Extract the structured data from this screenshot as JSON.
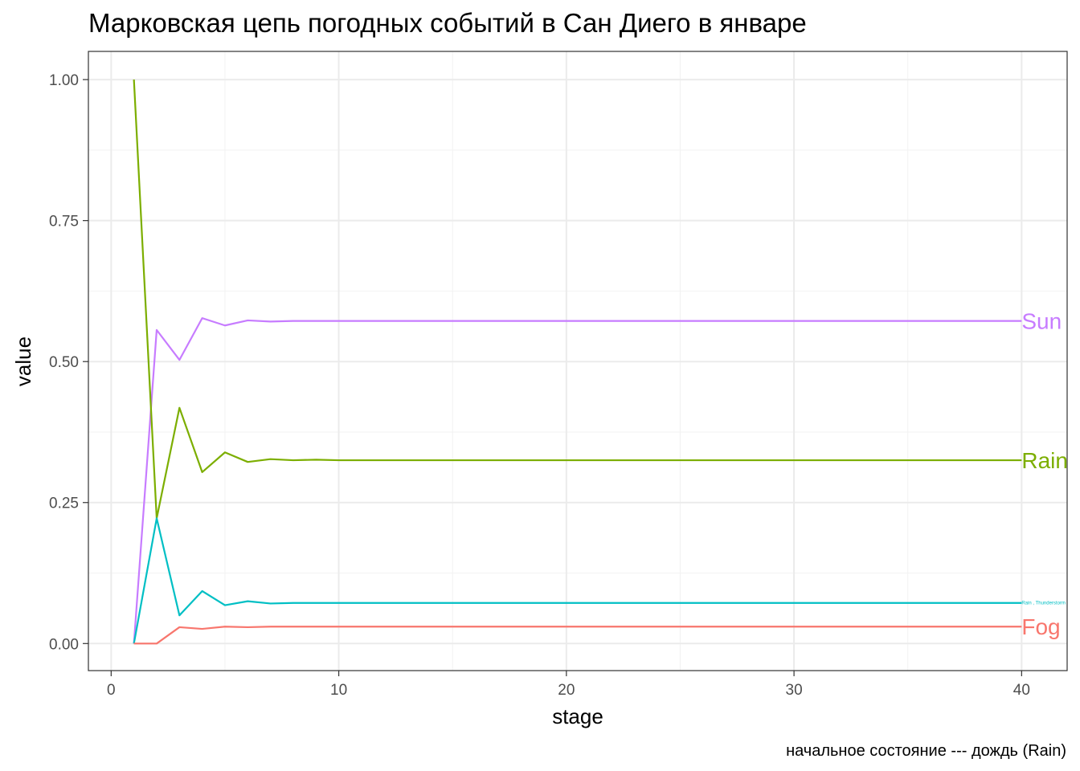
{
  "chart_data": {
    "type": "line",
    "title": "Марковская цепь погодных событий в Сан Диего в январе",
    "xlabel": "stage",
    "ylabel": "value",
    "caption": "начальное состояние --- дождь (Rain)",
    "xlim": [
      -1,
      42
    ],
    "ylim": [
      -0.048,
      1.05
    ],
    "x_ticks": [
      0,
      10,
      20,
      30,
      40
    ],
    "y_ticks": [
      0.0,
      0.25,
      0.5,
      0.75,
      1.0
    ],
    "x_tick_labels": [
      "0",
      "10",
      "20",
      "30",
      "40"
    ],
    "y_tick_labels": [
      "0.00",
      "0.25",
      "0.50",
      "0.75",
      "1.00"
    ],
    "grid": true,
    "legend": "none",
    "x": [
      1,
      2,
      3,
      4,
      5,
      6,
      7,
      8,
      9,
      10,
      40
    ],
    "series": [
      {
        "name": "Sun",
        "color": "#C77CFF",
        "label_size": "large",
        "values": [
          0.0,
          0.556,
          0.503,
          0.577,
          0.564,
          0.573,
          0.571,
          0.572,
          0.572,
          0.572,
          0.572
        ]
      },
      {
        "name": "Rain",
        "color": "#7CAE00",
        "label_size": "large",
        "values": [
          1.0,
          0.222,
          0.418,
          0.304,
          0.339,
          0.322,
          0.327,
          0.325,
          0.326,
          0.325,
          0.325
        ]
      },
      {
        "name": "Rain , Thunderstorm",
        "color": "#00BFC4",
        "label_size": "small",
        "values": [
          0.0,
          0.222,
          0.05,
          0.093,
          0.068,
          0.075,
          0.071,
          0.072,
          0.072,
          0.072,
          0.072
        ]
      },
      {
        "name": "Fog",
        "color": "#F8766D",
        "label_size": "large",
        "values": [
          0.0,
          0.0,
          0.029,
          0.026,
          0.03,
          0.029,
          0.03,
          0.03,
          0.03,
          0.03,
          0.03
        ]
      }
    ]
  }
}
